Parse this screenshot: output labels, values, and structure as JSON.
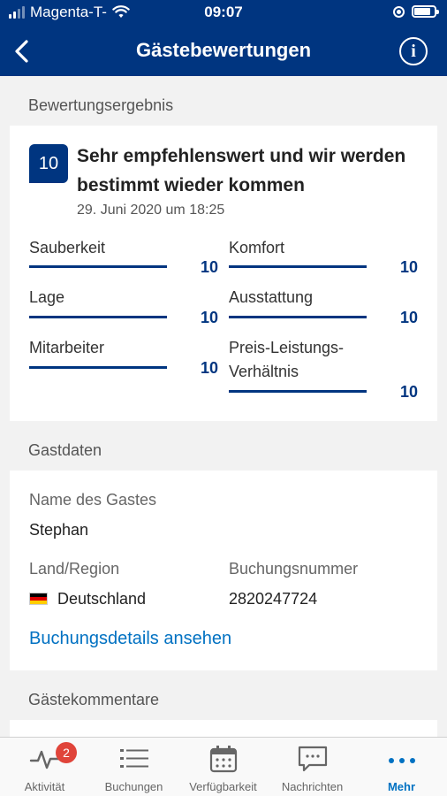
{
  "status_bar": {
    "carrier": "Magenta-T-",
    "time": "09:07",
    "signal_bars": 4,
    "signal_filled": 2,
    "battery_level": 0.8
  },
  "nav": {
    "title": "Gästebewertungen",
    "back_icon": "chevron-left-icon",
    "info_icon": "info-icon",
    "info_glyph": "i"
  },
  "rating_section": {
    "header": "Bewertungsergebnis",
    "score": "10",
    "title": "Sehr empfehlenswert und wir werden bestimmt wieder kommen",
    "date": "29. Juni 2020 um 18:25",
    "subscores": [
      {
        "label": "Sauberkeit",
        "value": "10",
        "fraction": 1.0
      },
      {
        "label": "Komfort",
        "value": "10",
        "fraction": 1.0
      },
      {
        "label": "Lage",
        "value": "10",
        "fraction": 1.0
      },
      {
        "label": "Ausstattung",
        "value": "10",
        "fraction": 1.0
      },
      {
        "label": "Mitarbeiter",
        "value": "10",
        "fraction": 1.0
      },
      {
        "label": "Preis-Leistungs-\nVerhältnis",
        "value": "10",
        "fraction": 1.0
      }
    ]
  },
  "guest_section": {
    "header": "Gastdaten",
    "name_label": "Name des Gastes",
    "name_value": "Stephan",
    "country_label": "Land/Region",
    "country_value": "Deutschland",
    "country_flag_colors": [
      "#000000",
      "#dd0000",
      "#ffce00"
    ],
    "booking_label": "Buchungsnummer",
    "booking_value": "2820247724",
    "details_link": "Buchungsdetails ansehen"
  },
  "comments_section": {
    "header": "Gästekommentare"
  },
  "tabbar": {
    "tabs": [
      {
        "label": "Aktivität",
        "icon": "activity-icon",
        "badge": "2",
        "active": false
      },
      {
        "label": "Buchungen",
        "icon": "list-icon",
        "active": false
      },
      {
        "label": "Verfügbarkeit",
        "icon": "calendar-icon",
        "active": false
      },
      {
        "label": "Nachrichten",
        "icon": "message-icon",
        "active": false
      },
      {
        "label": "Mehr",
        "icon": "more-icon",
        "active": true
      }
    ]
  },
  "colors": {
    "brand_navy": "#003580",
    "link_blue": "#0071c2",
    "badge_red": "#e0443a"
  }
}
